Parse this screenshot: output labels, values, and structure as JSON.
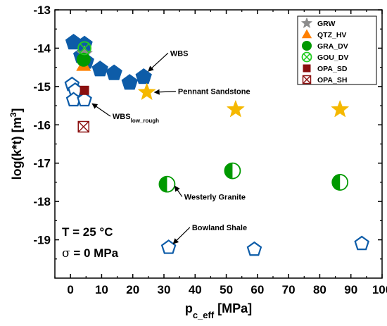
{
  "chart_data": {
    "type": "scatter",
    "xlabel": "p",
    "xlabel_sub": "c_eff",
    "xlabel_unit": " [MPa]",
    "ylabel": "log(k*t) [m",
    "ylabel_sup": "3",
    "ylabel_end": "]",
    "xlim": [
      -5,
      100
    ],
    "ylim": [
      -20,
      -13
    ],
    "xticks": [
      0,
      10,
      20,
      30,
      40,
      50,
      60,
      70,
      80,
      90,
      100
    ],
    "yticks": [
      -13,
      -14,
      -15,
      -16,
      -17,
      -18,
      -19
    ],
    "legend_position": "top-right",
    "series": [
      {
        "name": "GRW",
        "marker": "star",
        "color": "#8c8c8c",
        "points": [
          [
            4.5,
            -14.15
          ]
        ]
      },
      {
        "name": "QTZ_HV",
        "marker": "triangle",
        "color": "#ff8000",
        "points": [
          [
            4.2,
            -14.45
          ]
        ]
      },
      {
        "name": "GRA_DV",
        "marker": "circle",
        "color": "#009900",
        "points": [
          [
            4.2,
            -14.3
          ]
        ]
      },
      {
        "name": "GOU_DV",
        "marker": "circle-x-open",
        "color": "#22cc22",
        "points": [
          [
            4.5,
            -14.0
          ]
        ]
      },
      {
        "name": "OPA_SD",
        "marker": "square",
        "color": "#8b1010",
        "points": [
          [
            4.5,
            -15.1
          ]
        ]
      },
      {
        "name": "OPA_SH",
        "marker": "square-x-open",
        "color": "#8b1010",
        "points": [
          [
            4.2,
            -16.05
          ]
        ]
      }
    ],
    "extra_series": [
      {
        "label": "WBS",
        "marker": "pentagon",
        "color": "#0d5ca8",
        "points": [
          [
            1,
            -13.85
          ],
          [
            4.5,
            -13.9
          ],
          [
            3.5,
            -14.2
          ],
          [
            5,
            -14.35
          ],
          [
            9.5,
            -14.55
          ],
          [
            14,
            -14.65
          ],
          [
            19,
            -14.9
          ],
          [
            23.5,
            -14.75
          ]
        ]
      },
      {
        "label": "WBS_low_rough",
        "marker": "pentagon-open",
        "color": "#0d5ca8",
        "points": [
          [
            0.5,
            -14.95
          ],
          [
            1.5,
            -15.1
          ],
          [
            1,
            -15.35
          ],
          [
            4.5,
            -15.35
          ]
        ]
      },
      {
        "label": "Pennant Sandstone",
        "marker": "star",
        "color": "#f5b800",
        "points": [
          [
            24.5,
            -15.15
          ],
          [
            53,
            -15.6
          ],
          [
            86.5,
            -15.6
          ]
        ]
      },
      {
        "label": "Westerly Granite",
        "marker": "half-circle",
        "color": "#009900",
        "points": [
          [
            31,
            -17.55
          ],
          [
            52,
            -17.2
          ],
          [
            86.5,
            -17.5
          ]
        ]
      },
      {
        "label": "Bowland Shale",
        "marker": "pentagon-open",
        "color": "#0d5ca8",
        "points": [
          [
            31.5,
            -19.2
          ],
          [
            59,
            -19.25
          ],
          [
            93.5,
            -19.1
          ]
        ]
      }
    ],
    "annotations": [
      {
        "id": "wbs",
        "text": "WBS",
        "x": 32,
        "y": -14.2,
        "arrow_to": [
          25,
          -14.6
        ]
      },
      {
        "id": "pennant",
        "text": "Pennant Sandstone",
        "x": 34.5,
        "y": -15.2,
        "arrow_to": [
          27,
          -15.15
        ]
      },
      {
        "id": "wbslow",
        "text": "WBS",
        "sub": "low_rough",
        "x": 13.5,
        "y": -15.85,
        "arrow_to": [
          7,
          -15.45
        ]
      },
      {
        "id": "westerly",
        "text": "Westerly Granite",
        "x": 36.5,
        "y": -17.95,
        "arrow_to": [
          33.5,
          -17.6
        ]
      },
      {
        "id": "bowland",
        "text": "Bowland Shale",
        "x": 39,
        "y": -18.75,
        "arrow_to": [
          33,
          -19.1
        ]
      }
    ],
    "conditions": {
      "line1": "T = 25 °C",
      "line2_symbol": "σ",
      "line2_rest": " = 0 MPa"
    }
  }
}
